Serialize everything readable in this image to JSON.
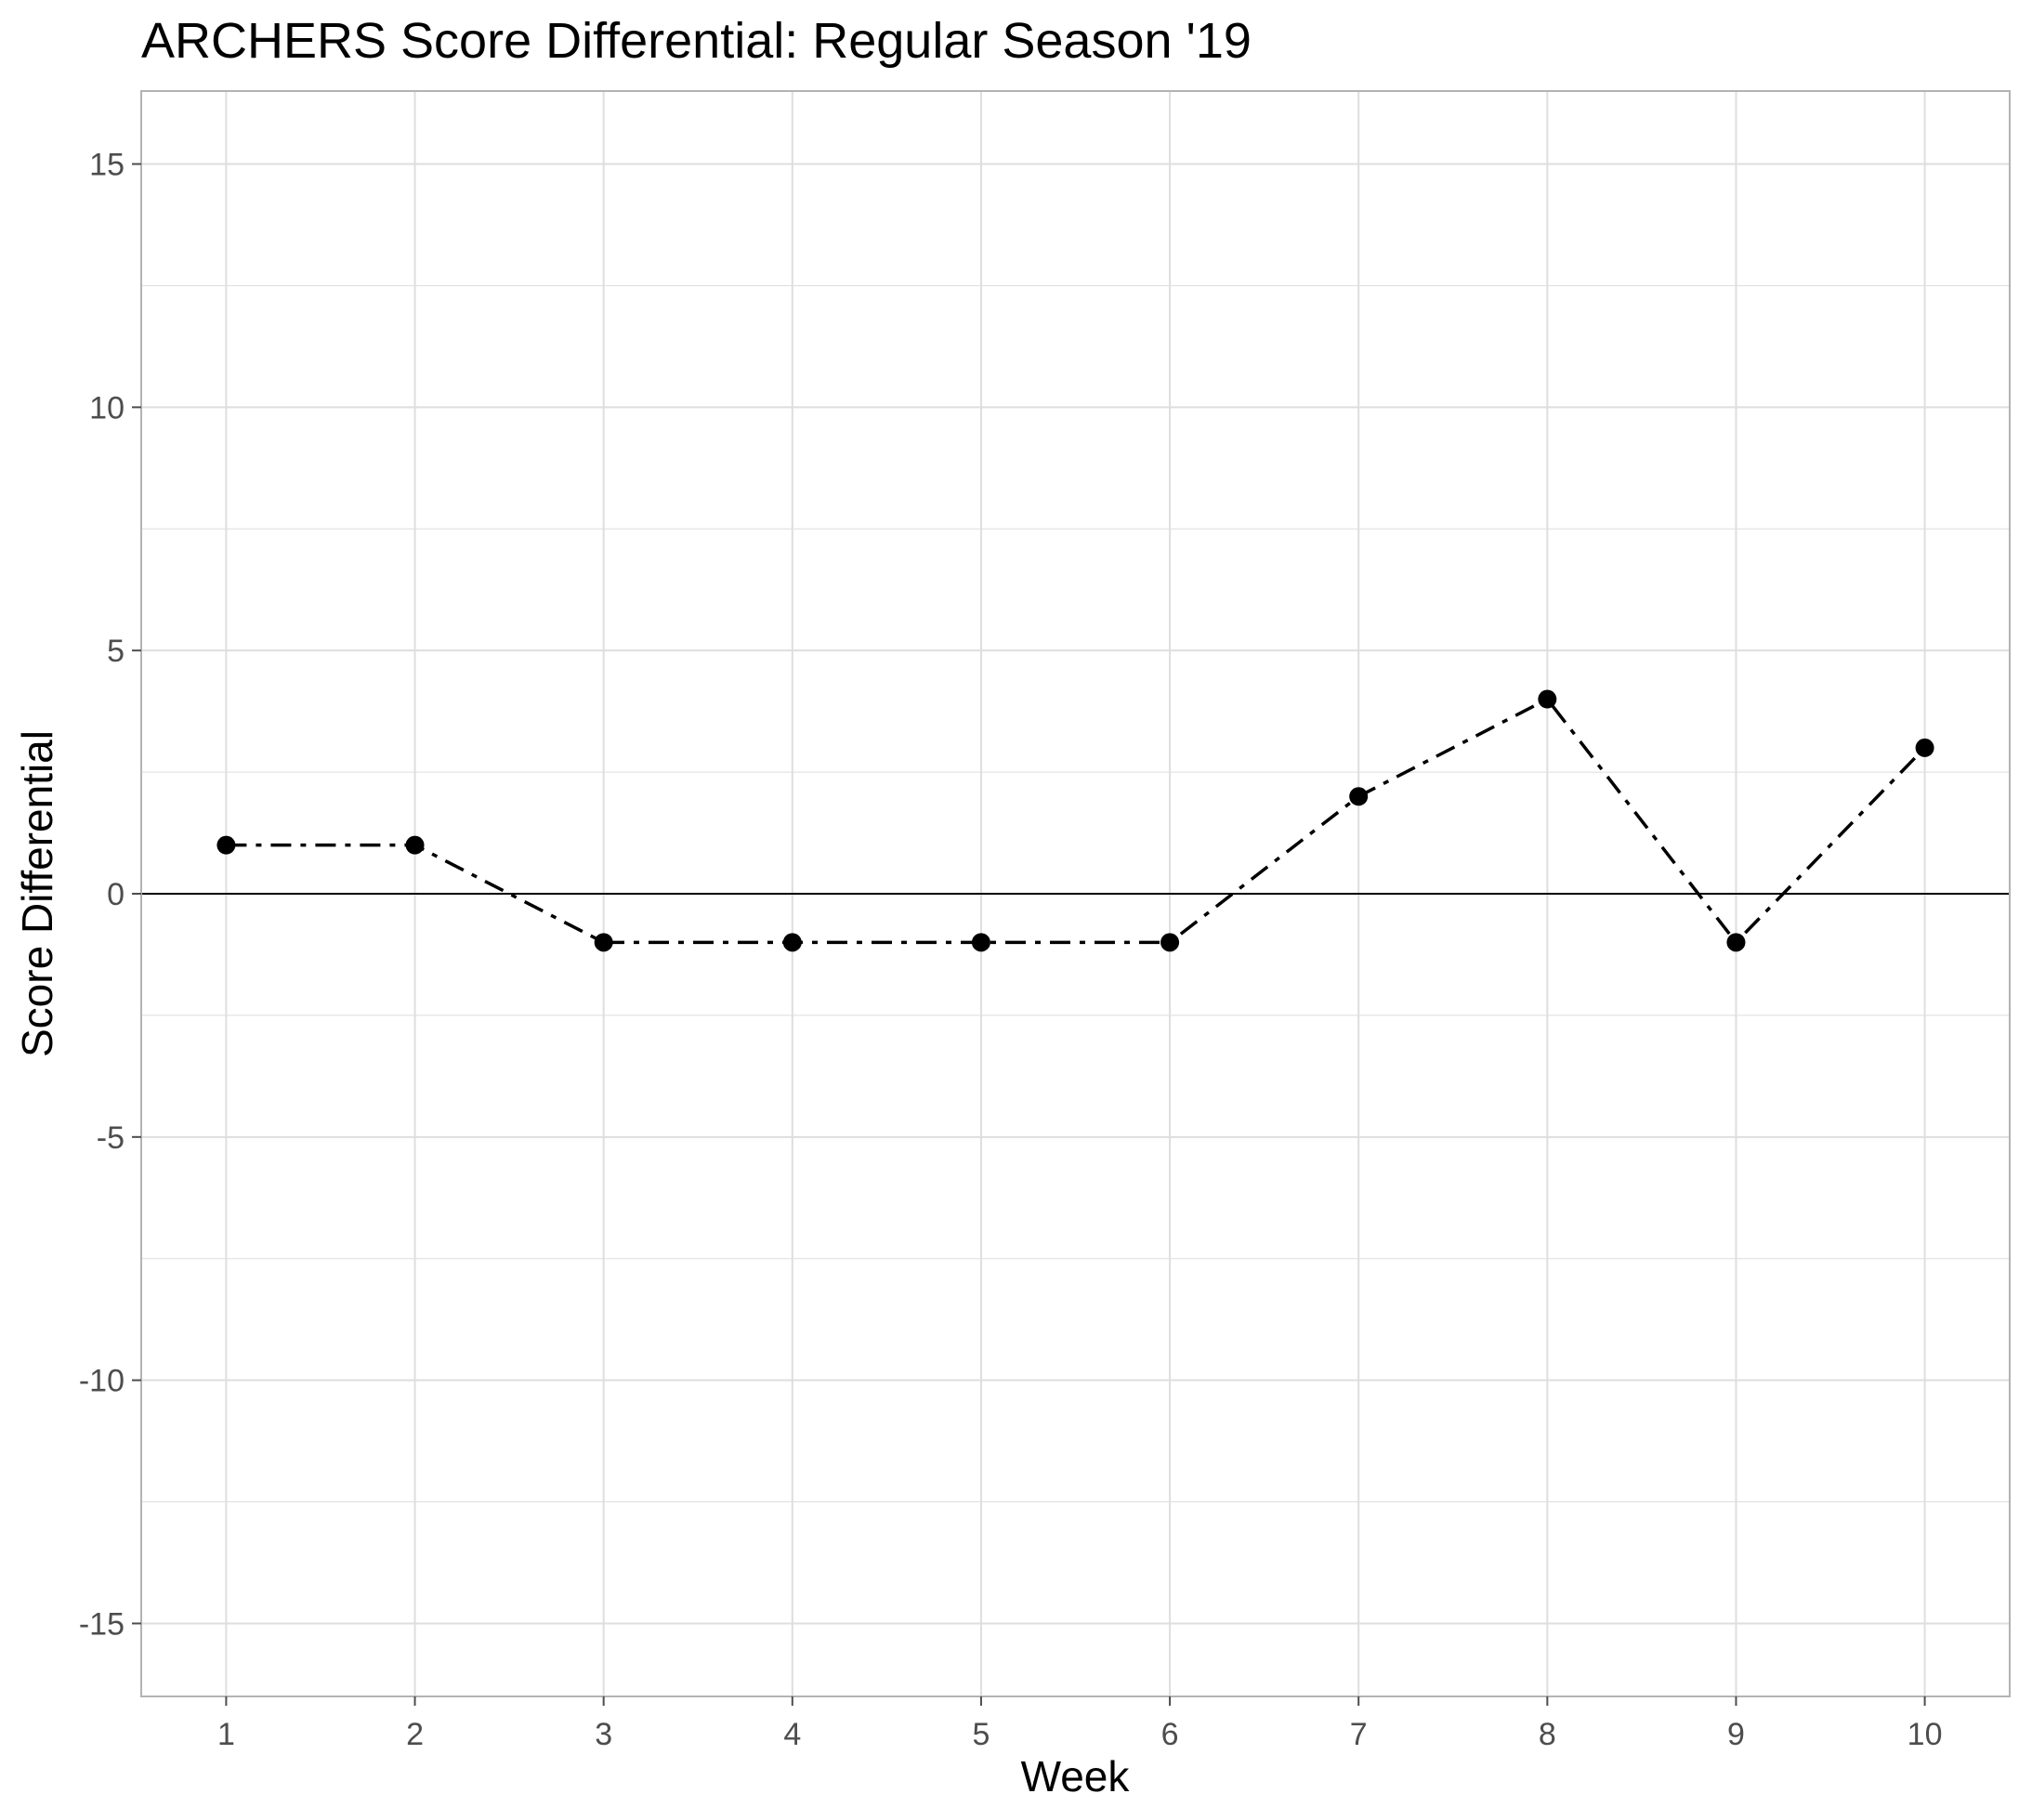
{
  "chart_data": {
    "type": "line",
    "title": "ARCHERS Score Differential: Regular Season '19",
    "xlabel": "Week",
    "ylabel": "Score Differential",
    "x": [
      1,
      2,
      3,
      4,
      5,
      6,
      7,
      8,
      9,
      10
    ],
    "series": [
      {
        "values": [
          1,
          1,
          -1,
          -1,
          -1,
          -1,
          2,
          4,
          -1,
          3
        ]
      }
    ],
    "x_ticks": [
      "1",
      "2",
      "3",
      "4",
      "5",
      "6",
      "7",
      "8",
      "9",
      "10"
    ],
    "y_ticks": [
      "15",
      "10",
      "5",
      "0",
      "-5",
      "-10",
      "-15"
    ],
    "xlim": [
      0.55,
      10.45
    ],
    "ylim": [
      -16.5,
      16.5
    ],
    "reference_line_y": 0,
    "line_style": "dash-dot",
    "marker": "filled-circle",
    "grid": true,
    "legend": "none",
    "colors": {
      "line": "#000000",
      "grid": "#dedede",
      "panel_border": "#b3b3b3",
      "tick_text": "#4d4d4d"
    }
  }
}
